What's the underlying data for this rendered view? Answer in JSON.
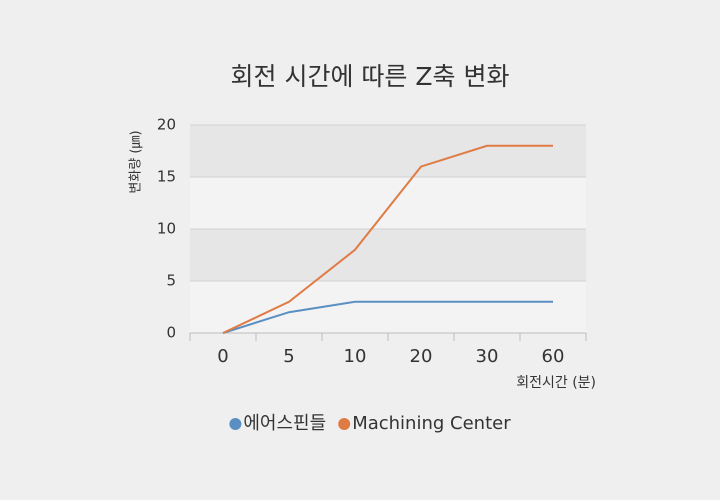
{
  "chart_data": {
    "type": "line",
    "title": "회전 시간에 따른 Z축 변화",
    "x_label": "회전시간 (분)",
    "y_label": "변화량 (㎛)",
    "categories": [
      "0",
      "5",
      "10",
      "20",
      "30",
      "60"
    ],
    "series": [
      {
        "name": "에어스핀들",
        "color": "#5b8fc2",
        "values": [
          0,
          2,
          3,
          3,
          3,
          3
        ]
      },
      {
        "name": "Machining Center",
        "color": "#e07b45",
        "values": [
          0,
          3,
          8,
          16,
          18,
          18
        ]
      }
    ],
    "ylim": [
      0,
      20
    ],
    "yticks": [
      0,
      5,
      10,
      15,
      20
    ],
    "grid": true,
    "legend": "bottom"
  }
}
